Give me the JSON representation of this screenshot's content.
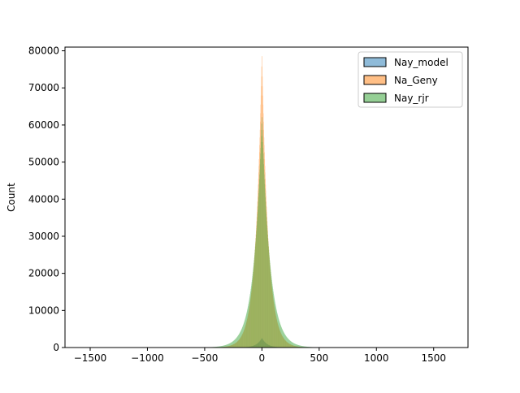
{
  "chart_data": {
    "type": "histogram",
    "title": "",
    "xlabel": "",
    "ylabel": "Count",
    "xlim": [
      -1720,
      1800
    ],
    "ylim": [
      0,
      81000
    ],
    "xticks": [
      -1500,
      -1000,
      -500,
      0,
      500,
      1000,
      1500
    ],
    "xtick_labels": [
      "−1500",
      "−1000",
      "−500",
      "0",
      "500",
      "1000",
      "1500"
    ],
    "yticks": [
      0,
      10000,
      20000,
      30000,
      40000,
      50000,
      60000,
      70000,
      80000
    ],
    "ytick_labels": [
      "0",
      "10000",
      "20000",
      "30000",
      "40000",
      "50000",
      "60000",
      "70000",
      "80000"
    ],
    "grid": false,
    "legend_position": "top-right",
    "series": [
      {
        "name": "Nay_model",
        "color": "#1f77b4",
        "fill_alpha": 0.5,
        "shape": "laplace",
        "center": 0,
        "peak": 2600,
        "scale": 45,
        "range": [
          -140,
          140
        ]
      },
      {
        "name": "Na_Geny",
        "color": "#ff7f0e",
        "fill_alpha": 0.5,
        "shape": "laplace",
        "center": 0,
        "peak": 80000,
        "scale": 55,
        "range": [
          -480,
          480
        ]
      },
      {
        "name": "Nay_rjr",
        "color": "#2ca02c",
        "fill_alpha": 0.5,
        "shape": "laplace",
        "center": 0,
        "peak": 63000,
        "scale": 70,
        "range": [
          -480,
          480
        ]
      }
    ]
  }
}
